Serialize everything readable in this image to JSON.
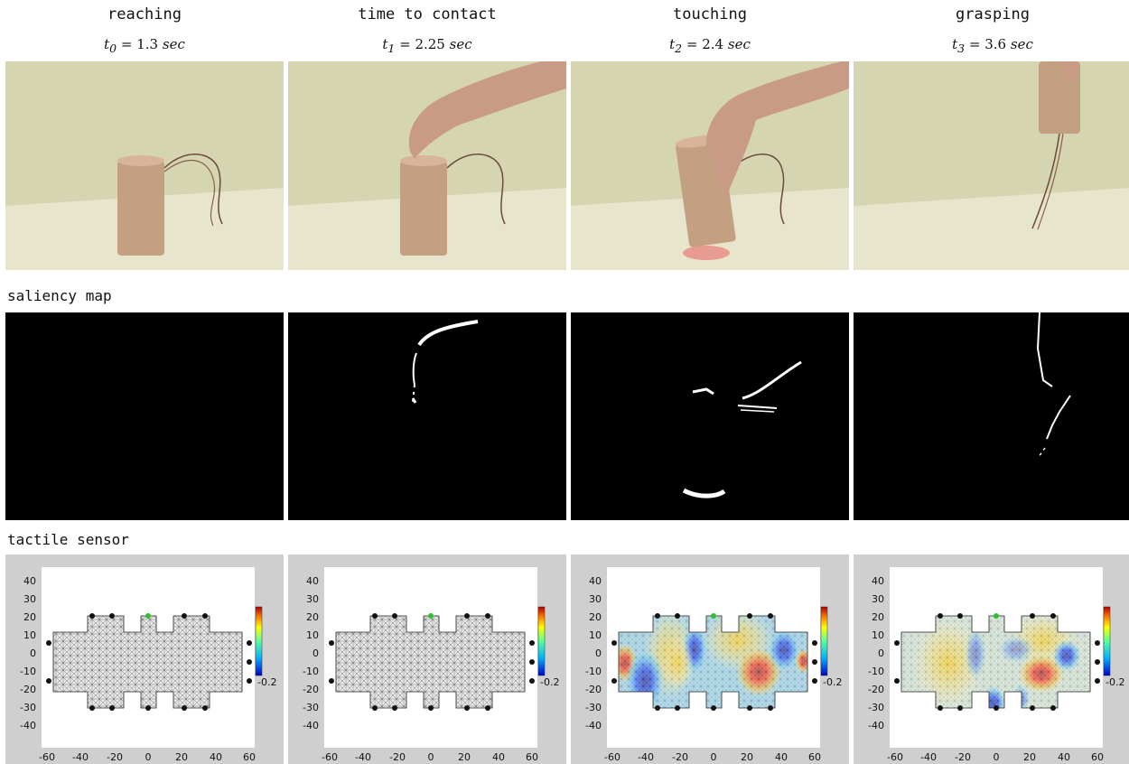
{
  "columns": [
    {
      "title": "reaching",
      "time_var": "t",
      "time_sub": "0",
      "time_value": "1.3",
      "time_unit": "sec"
    },
    {
      "title": "time to contact",
      "time_var": "t",
      "time_sub": "1",
      "time_value": "2.25",
      "time_unit": "sec"
    },
    {
      "title": "touching",
      "time_var": "t",
      "time_sub": "2",
      "time_value": "2.4",
      "time_unit": "sec"
    },
    {
      "title": "grasping",
      "time_var": "t",
      "time_sub": "3",
      "time_value": "3.6",
      "time_unit": "sec"
    }
  ],
  "rows": {
    "saliency_label": "saliency map",
    "tactile_label": "tactile sensor"
  },
  "tactile_axes": {
    "x_ticks": [
      "-60",
      "-40",
      "-20",
      "0",
      "20",
      "40",
      "60"
    ],
    "y_ticks": [
      "40",
      "30",
      "20",
      "10",
      "0",
      "-10",
      "-20",
      "-30",
      "-40"
    ],
    "colorbar_min_label": "-0.2"
  },
  "colors": {
    "panel_gray": "#cfcfcf",
    "wall": "#d9d8b6",
    "table": "#e8e6cc",
    "box": "#c9a586",
    "contact_marker": "#2fbf2f"
  }
}
